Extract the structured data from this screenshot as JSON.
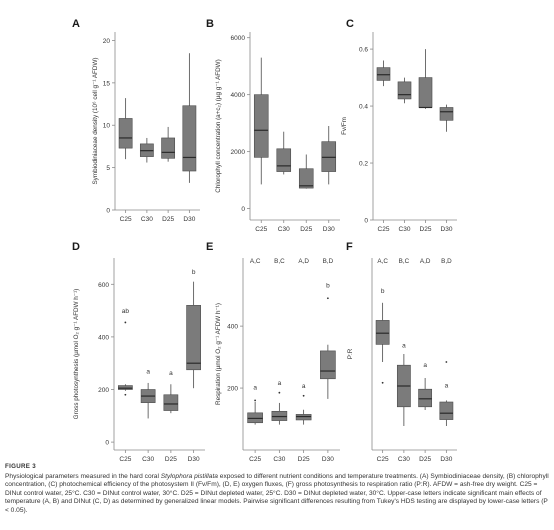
{
  "figure": {
    "label": "FIGURE 3",
    "caption_intro": "Physiological parameters measured in the hard coral ",
    "caption_species": "Stylophora pistillata",
    "caption_rest": " exposed to different nutrient conditions and temperature treatments. (A) Symbiodiniaceae density, (B) chlorophyll concentration, (C) photochemical efficiency of the photosystem II (Fv/Fm), (D, E) oxygen fluxes, (F) gross photosynthesis to respiration ratio (P:R). AFDW = ash-free dry weight. C25 = DINut control water, 25°C. C30 = DINut control water, 30°C. D25 = DINut depleted water, 25°C. D30 = DINut depleted water, 30°C. Upper-case letters indicate significant main effects of temperature (A, B) and DINut (C, D) as determined by generalized linear models. Pairwise significant differences resulting from Tukey's HDS testing are displayed by lower-case letters (P < 0.05)."
  },
  "colors": {
    "box_fill": "#7b7b7b",
    "box_stroke": "#4a4a4a",
    "median": "#2a2a2a",
    "axis": "#8a8a8a",
    "text": "#333333"
  },
  "chart_data": [
    {
      "panel": "A",
      "type": "box",
      "categories": [
        "C25",
        "C30",
        "D25",
        "D30"
      ],
      "ylabel": "Symbiodiniaceae density (10⁶ cell g⁻¹ AFDW)",
      "ylim": [
        0,
        21
      ],
      "yticks": [
        0,
        5,
        10,
        15,
        20
      ],
      "boxes": [
        {
          "min": 6.0,
          "q1": 7.3,
          "median": 8.5,
          "q3": 10.8,
          "max": 13.2
        },
        {
          "min": 5.6,
          "q1": 6.3,
          "median": 7.0,
          "q3": 7.8,
          "max": 8.5
        },
        {
          "min": 5.7,
          "q1": 6.1,
          "median": 6.8,
          "q3": 8.5,
          "max": 9.8
        },
        {
          "min": 3.2,
          "q1": 4.6,
          "median": 6.2,
          "q3": 12.3,
          "max": 18.5
        }
      ],
      "outliers": [],
      "upper_letters": [],
      "lower_letters": []
    },
    {
      "panel": "B",
      "type": "box",
      "categories": [
        "C25",
        "C30",
        "D25",
        "D30"
      ],
      "ylabel": "Chlorophyll concentration (a+c₂) (µg g⁻¹ AFDW)",
      "ylim": [
        -400,
        6200
      ],
      "yticks": [
        0,
        2000,
        4000,
        6000
      ],
      "boxes": [
        {
          "min": 850,
          "q1": 1800,
          "median": 2750,
          "q3": 4000,
          "max": 5300
        },
        {
          "min": 1200,
          "q1": 1300,
          "median": 1500,
          "q3": 2100,
          "max": 2700
        },
        {
          "min": 700,
          "q1": 720,
          "median": 800,
          "q3": 1400,
          "max": 1900
        },
        {
          "min": 850,
          "q1": 1300,
          "median": 1800,
          "q3": 2350,
          "max": 2900
        }
      ],
      "outliers": [],
      "upper_letters": [],
      "lower_letters": []
    },
    {
      "panel": "C",
      "type": "box",
      "categories": [
        "C25",
        "C30",
        "D25",
        "D30"
      ],
      "ylabel": "Fv/Fm",
      "ylim": [
        0.0,
        0.66
      ],
      "yticks": [
        0.0,
        0.2,
        0.4,
        0.6
      ],
      "boxes": [
        {
          "min": 0.47,
          "q1": 0.49,
          "median": 0.51,
          "q3": 0.535,
          "max": 0.56
        },
        {
          "min": 0.41,
          "q1": 0.425,
          "median": 0.44,
          "q3": 0.485,
          "max": 0.5
        },
        {
          "min": 0.39,
          "q1": 0.395,
          "median": 0.395,
          "q3": 0.5,
          "max": 0.6
        },
        {
          "min": 0.31,
          "q1": 0.35,
          "median": 0.38,
          "q3": 0.395,
          "max": 0.405
        }
      ],
      "outliers": [],
      "upper_letters": [],
      "lower_letters": []
    },
    {
      "panel": "D",
      "type": "box",
      "categories": [
        "C25",
        "C30",
        "D25",
        "D30"
      ],
      "ylabel": "Gross photosynthesis (µmol O₂ g⁻¹ AFDW h⁻¹)",
      "ylim": [
        -30,
        700
      ],
      "yticks": [
        0,
        200,
        400,
        600
      ],
      "boxes": [
        {
          "min": 195,
          "q1": 200,
          "median": 205,
          "q3": 215,
          "max": 220
        },
        {
          "min": 90,
          "q1": 150,
          "median": 175,
          "q3": 200,
          "max": 225
        },
        {
          "min": 110,
          "q1": 120,
          "median": 145,
          "q3": 180,
          "max": 220
        },
        {
          "min": 205,
          "q1": 275,
          "median": 300,
          "q3": 520,
          "max": 610
        }
      ],
      "outliers": [
        {
          "i": 0,
          "v": 180
        },
        {
          "i": 0,
          "v": 455
        }
      ],
      "upper_letters": [],
      "lower_letters": [
        "ab",
        "a",
        "a",
        "b"
      ],
      "lower_letter_v": [
        490,
        260,
        255,
        640
      ]
    },
    {
      "panel": "E",
      "type": "box",
      "categories": [
        "C25",
        "C30",
        "D25",
        "D30"
      ],
      "ylabel": "Respiration (µmol O₂ g⁻¹ AFDW h⁻¹)",
      "ylim": [
        0,
        620
      ],
      "yticks": [
        200,
        400
      ],
      "boxes": [
        {
          "min": 82,
          "q1": 88,
          "median": 102,
          "q3": 120,
          "max": 155
        },
        {
          "min": 82,
          "q1": 95,
          "median": 108,
          "q3": 125,
          "max": 152
        },
        {
          "min": 82,
          "q1": 97,
          "median": 108,
          "q3": 115,
          "max": 130
        },
        {
          "min": 165,
          "q1": 230,
          "median": 255,
          "q3": 320,
          "max": 340
        }
      ],
      "outliers": [
        {
          "i": 0,
          "v": 160
        },
        {
          "i": 1,
          "v": 185
        },
        {
          "i": 2,
          "v": 175
        },
        {
          "i": 3,
          "v": 490
        }
      ],
      "upper_letters": [
        "A,C",
        "B,C",
        "A,D",
        "B,D"
      ],
      "lower_letters": [
        "a",
        "a",
        "a",
        "b"
      ],
      "lower_letter_v": [
        195,
        210,
        200,
        525
      ]
    },
    {
      "panel": "F",
      "type": "box",
      "categories": [
        "C25",
        "C30",
        "D25",
        "D30"
      ],
      "ylabel": "P:R",
      "ylim": [
        0.35,
        1.55
      ],
      "yticks": [],
      "boxes": [
        {
          "min": 0.9,
          "q1": 1.01,
          "median": 1.08,
          "q3": 1.16,
          "max": 1.27
        },
        {
          "min": 0.5,
          "q1": 0.62,
          "median": 0.75,
          "q3": 0.88,
          "max": 0.95
        },
        {
          "min": 0.6,
          "q1": 0.62,
          "median": 0.67,
          "q3": 0.73,
          "max": 0.8
        },
        {
          "min": 0.5,
          "q1": 0.54,
          "median": 0.58,
          "q3": 0.65,
          "max": 0.66
        }
      ],
      "outliers": [
        {
          "i": 0,
          "v": 0.77
        },
        {
          "i": 3,
          "v": 0.9
        }
      ],
      "upper_letters": [
        "A,C",
        "B,C",
        "A,D",
        "B,D"
      ],
      "lower_letters": [
        "b",
        "a",
        "a",
        "a"
      ],
      "lower_letter_v": [
        1.33,
        0.99,
        0.87,
        0.74
      ]
    }
  ]
}
